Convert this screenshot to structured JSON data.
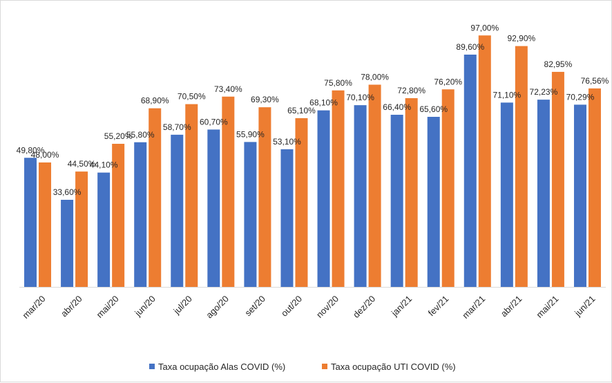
{
  "chart_data": {
    "type": "bar",
    "title": "",
    "xlabel": "",
    "ylabel": "",
    "ylim": [
      0,
      100
    ],
    "grid": false,
    "legend_position": "bottom",
    "categories": [
      "mar/20",
      "abr/20",
      "mai/20",
      "jun/20",
      "jul/20",
      "ago/20",
      "set/20",
      "out/20",
      "nov/20",
      "dez/20",
      "jan/21",
      "fev/21",
      "mar/21",
      "abr/21",
      "mai/21",
      "jun/21"
    ],
    "series": [
      {
        "name": "Taxa ocupação Alas COVID (%)",
        "color": "#4472C4",
        "values": [
          49.8,
          33.6,
          44.1,
          55.8,
          58.7,
          60.7,
          55.9,
          53.1,
          68.1,
          70.1,
          66.4,
          65.6,
          89.6,
          71.1,
          72.23,
          70.29
        ],
        "labels": [
          "49,80%",
          "33,60%",
          "44,10%",
          "55,80%",
          "58,70%",
          "60,70%",
          "55,90%",
          "53,10%",
          "68,10%",
          "70,10%",
          "66,40%",
          "65,60%",
          "89,60%",
          "71,10%",
          "72,23%",
          "70,29%"
        ]
      },
      {
        "name": "Taxa ocupação UTI COVID (%)",
        "color": "#ED7D31",
        "values": [
          48.0,
          44.5,
          55.2,
          68.9,
          70.5,
          73.4,
          69.3,
          65.1,
          75.8,
          78.0,
          72.8,
          76.2,
          97.0,
          92.9,
          82.95,
          76.56
        ],
        "labels": [
          "48,00%",
          "44,50%",
          "55,20%",
          "68,90%",
          "70,50%",
          "73,40%",
          "69,30%",
          "65,10%",
          "75,80%",
          "78,00%",
          "72,80%",
          "76,20%",
          "97,00%",
          "92,90%",
          "82,95%",
          "76,56%"
        ]
      }
    ]
  }
}
